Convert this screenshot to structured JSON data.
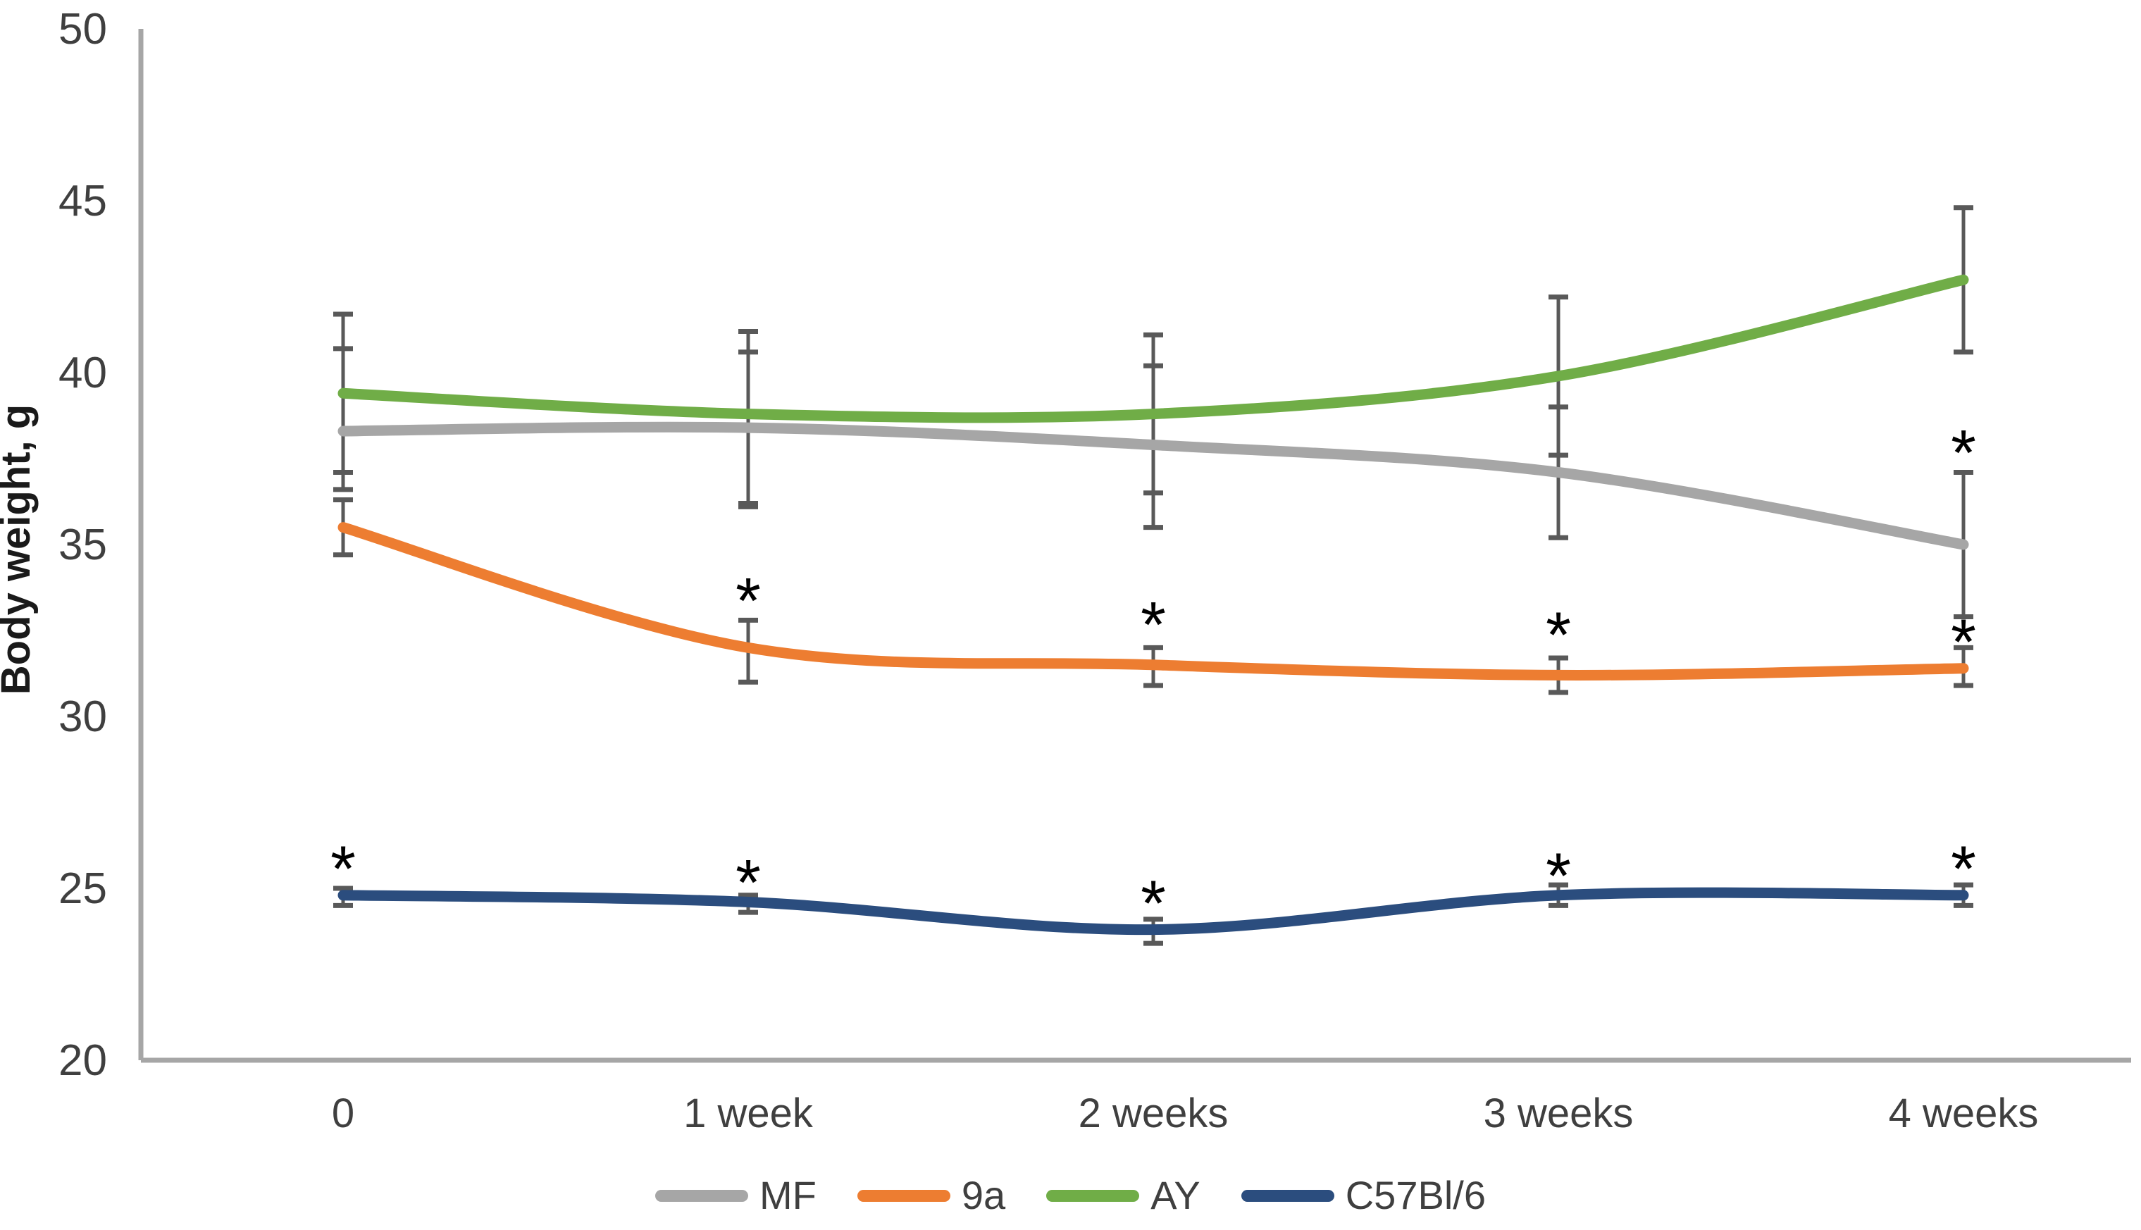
{
  "chart_data": {
    "type": "line",
    "title": "",
    "xlabel": "",
    "ylabel": "Body weight, g",
    "categories": [
      "0",
      "1 week",
      "2 weeks",
      "3 weeks",
      "4 weeks"
    ],
    "ylim": [
      20,
      50
    ],
    "yticks": [
      20,
      25,
      30,
      35,
      40,
      45,
      50
    ],
    "grid": false,
    "legend_position": "bottom",
    "line_style": "smooth",
    "axis_color": "#a6a6a6",
    "tick_label_color": "#3f3f3f",
    "error_bar_color": "#595959",
    "significance_symbol": "*",
    "series": [
      {
        "name": "MF",
        "color": "#a6a6a6",
        "values": [
          38.3,
          38.4,
          37.9,
          37.1,
          35.0
        ],
        "err_up": [
          2.4,
          2.2,
          2.3,
          1.9,
          2.1
        ],
        "err_down": [
          1.7,
          2.2,
          2.4,
          1.9,
          2.1
        ]
      },
      {
        "name": "9a",
        "color": "#ed7d31",
        "values": [
          35.5,
          32.0,
          31.5,
          31.2,
          31.4
        ],
        "err_up": [
          0.8,
          0.8,
          0.5,
          0.5,
          0.6
        ],
        "err_down": [
          0.8,
          1.0,
          0.6,
          0.5,
          0.5
        ]
      },
      {
        "name": "AY",
        "color": "#70ad47",
        "values": [
          39.4,
          38.8,
          38.8,
          39.9,
          42.7
        ],
        "err_up": [
          2.3,
          2.4,
          2.3,
          2.3,
          2.1
        ],
        "err_down": [
          2.3,
          2.7,
          2.3,
          2.3,
          2.1
        ]
      },
      {
        "name": "C57Bl/6",
        "color": "#2b4d7e",
        "values": [
          24.8,
          24.6,
          23.8,
          24.8,
          24.8
        ],
        "err_up": [
          0.2,
          0.2,
          0.3,
          0.3,
          0.3
        ],
        "err_down": [
          0.3,
          0.3,
          0.4,
          0.3,
          0.3
        ]
      }
    ],
    "annotations": [
      {
        "series": "C57Bl/6",
        "category_index": 0,
        "y": 25.9,
        "symbol": "*"
      },
      {
        "series": "9a",
        "category_index": 1,
        "y": 33.7,
        "symbol": "*"
      },
      {
        "series": "C57Bl/6",
        "category_index": 1,
        "y": 25.5,
        "symbol": "*"
      },
      {
        "series": "9a",
        "category_index": 2,
        "y": 33.0,
        "symbol": "*"
      },
      {
        "series": "C57Bl/6",
        "category_index": 2,
        "y": 24.9,
        "symbol": "*"
      },
      {
        "series": "9a",
        "category_index": 3,
        "y": 32.7,
        "symbol": "*"
      },
      {
        "series": "C57Bl/6",
        "category_index": 3,
        "y": 25.7,
        "symbol": "*"
      },
      {
        "series": "MF",
        "category_index": 4,
        "y": 38.0,
        "symbol": "*"
      },
      {
        "series": "9a",
        "category_index": 4,
        "y": 32.5,
        "symbol": "*"
      },
      {
        "series": "C57Bl/6",
        "category_index": 4,
        "y": 25.9,
        "symbol": "*"
      }
    ]
  }
}
